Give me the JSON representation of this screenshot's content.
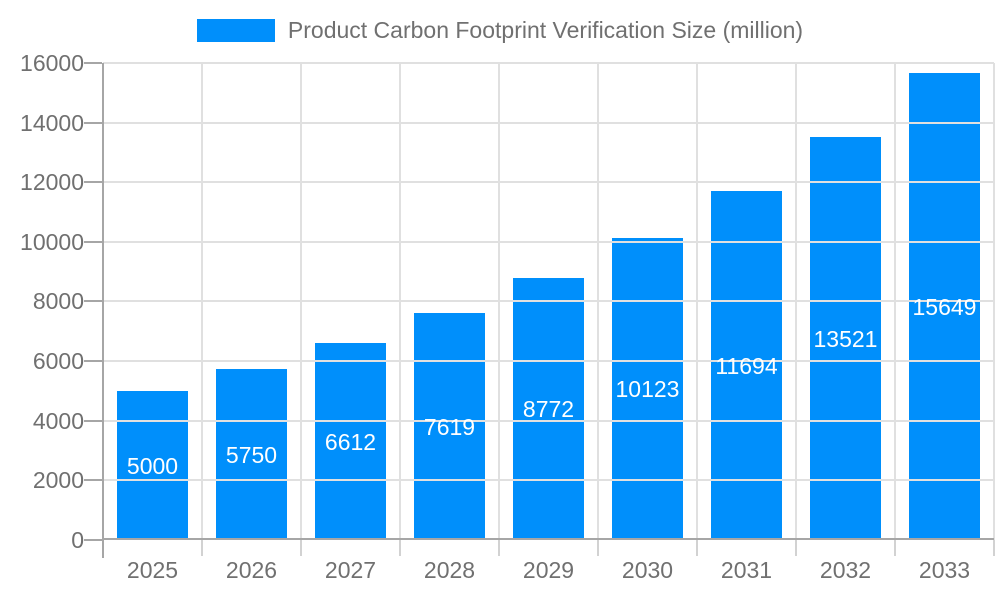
{
  "chart_data": {
    "type": "bar",
    "title": "Product Carbon Footprint Verification Size (million)",
    "legend_position": "top-center",
    "categories": [
      "2025",
      "2026",
      "2027",
      "2028",
      "2029",
      "2030",
      "2031",
      "2032",
      "2033"
    ],
    "values": [
      5000,
      5750,
      6612,
      7619,
      8772,
      10123,
      11694,
      13521,
      15649
    ],
    "xlabel": "",
    "ylabel": "",
    "ylim": [
      0,
      16000
    ],
    "yticks": [
      0,
      2000,
      4000,
      6000,
      8000,
      10000,
      12000,
      14000,
      16000
    ],
    "grid": true,
    "colors": {
      "bar": "#008FFB",
      "grid": "#e0e0e0",
      "axis": "#a6a6a6",
      "minor_tick": "#d2d2d2",
      "text": "#707070",
      "bar_label": "#ffffff",
      "background": "#ffffff"
    }
  }
}
